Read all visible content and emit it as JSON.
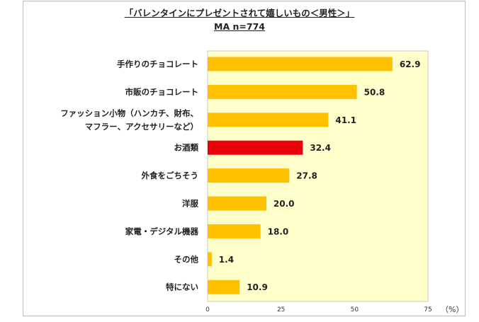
{
  "chart_data": {
    "type": "bar",
    "orientation": "horizontal",
    "title": "「バレンタインにプレゼントされて嬉しいもの＜男性＞」",
    "subtitle": "MA n=774",
    "categories": [
      [
        "手作りのチョコレート"
      ],
      [
        "市販のチョコレート"
      ],
      [
        "ファッション小物（ハンカチ、財布、",
        "マフラー、アクセサリーなど）"
      ],
      [
        "お酒類"
      ],
      [
        "外食をごちそう"
      ],
      [
        "洋服"
      ],
      [
        "家電・デジタル機器"
      ],
      [
        "その他"
      ],
      [
        "特にない"
      ]
    ],
    "values": [
      62.9,
      50.8,
      41.1,
      32.4,
      27.8,
      20.0,
      18.0,
      1.4,
      10.9
    ],
    "value_labels": [
      "62.9",
      "50.8",
      "41.1",
      "32.4",
      "27.8",
      "20.0",
      "18.0",
      "1.4",
      "10.9"
    ],
    "highlight_index": 3,
    "xlim": [
      0,
      75
    ],
    "xticks": [
      "0",
      "25",
      "50",
      "75"
    ],
    "xunit": "（%）",
    "grid": false,
    "colors": {
      "bar": "#FFC000",
      "highlight": "#E8000B",
      "plot_bg": "#FFFFCC"
    }
  }
}
